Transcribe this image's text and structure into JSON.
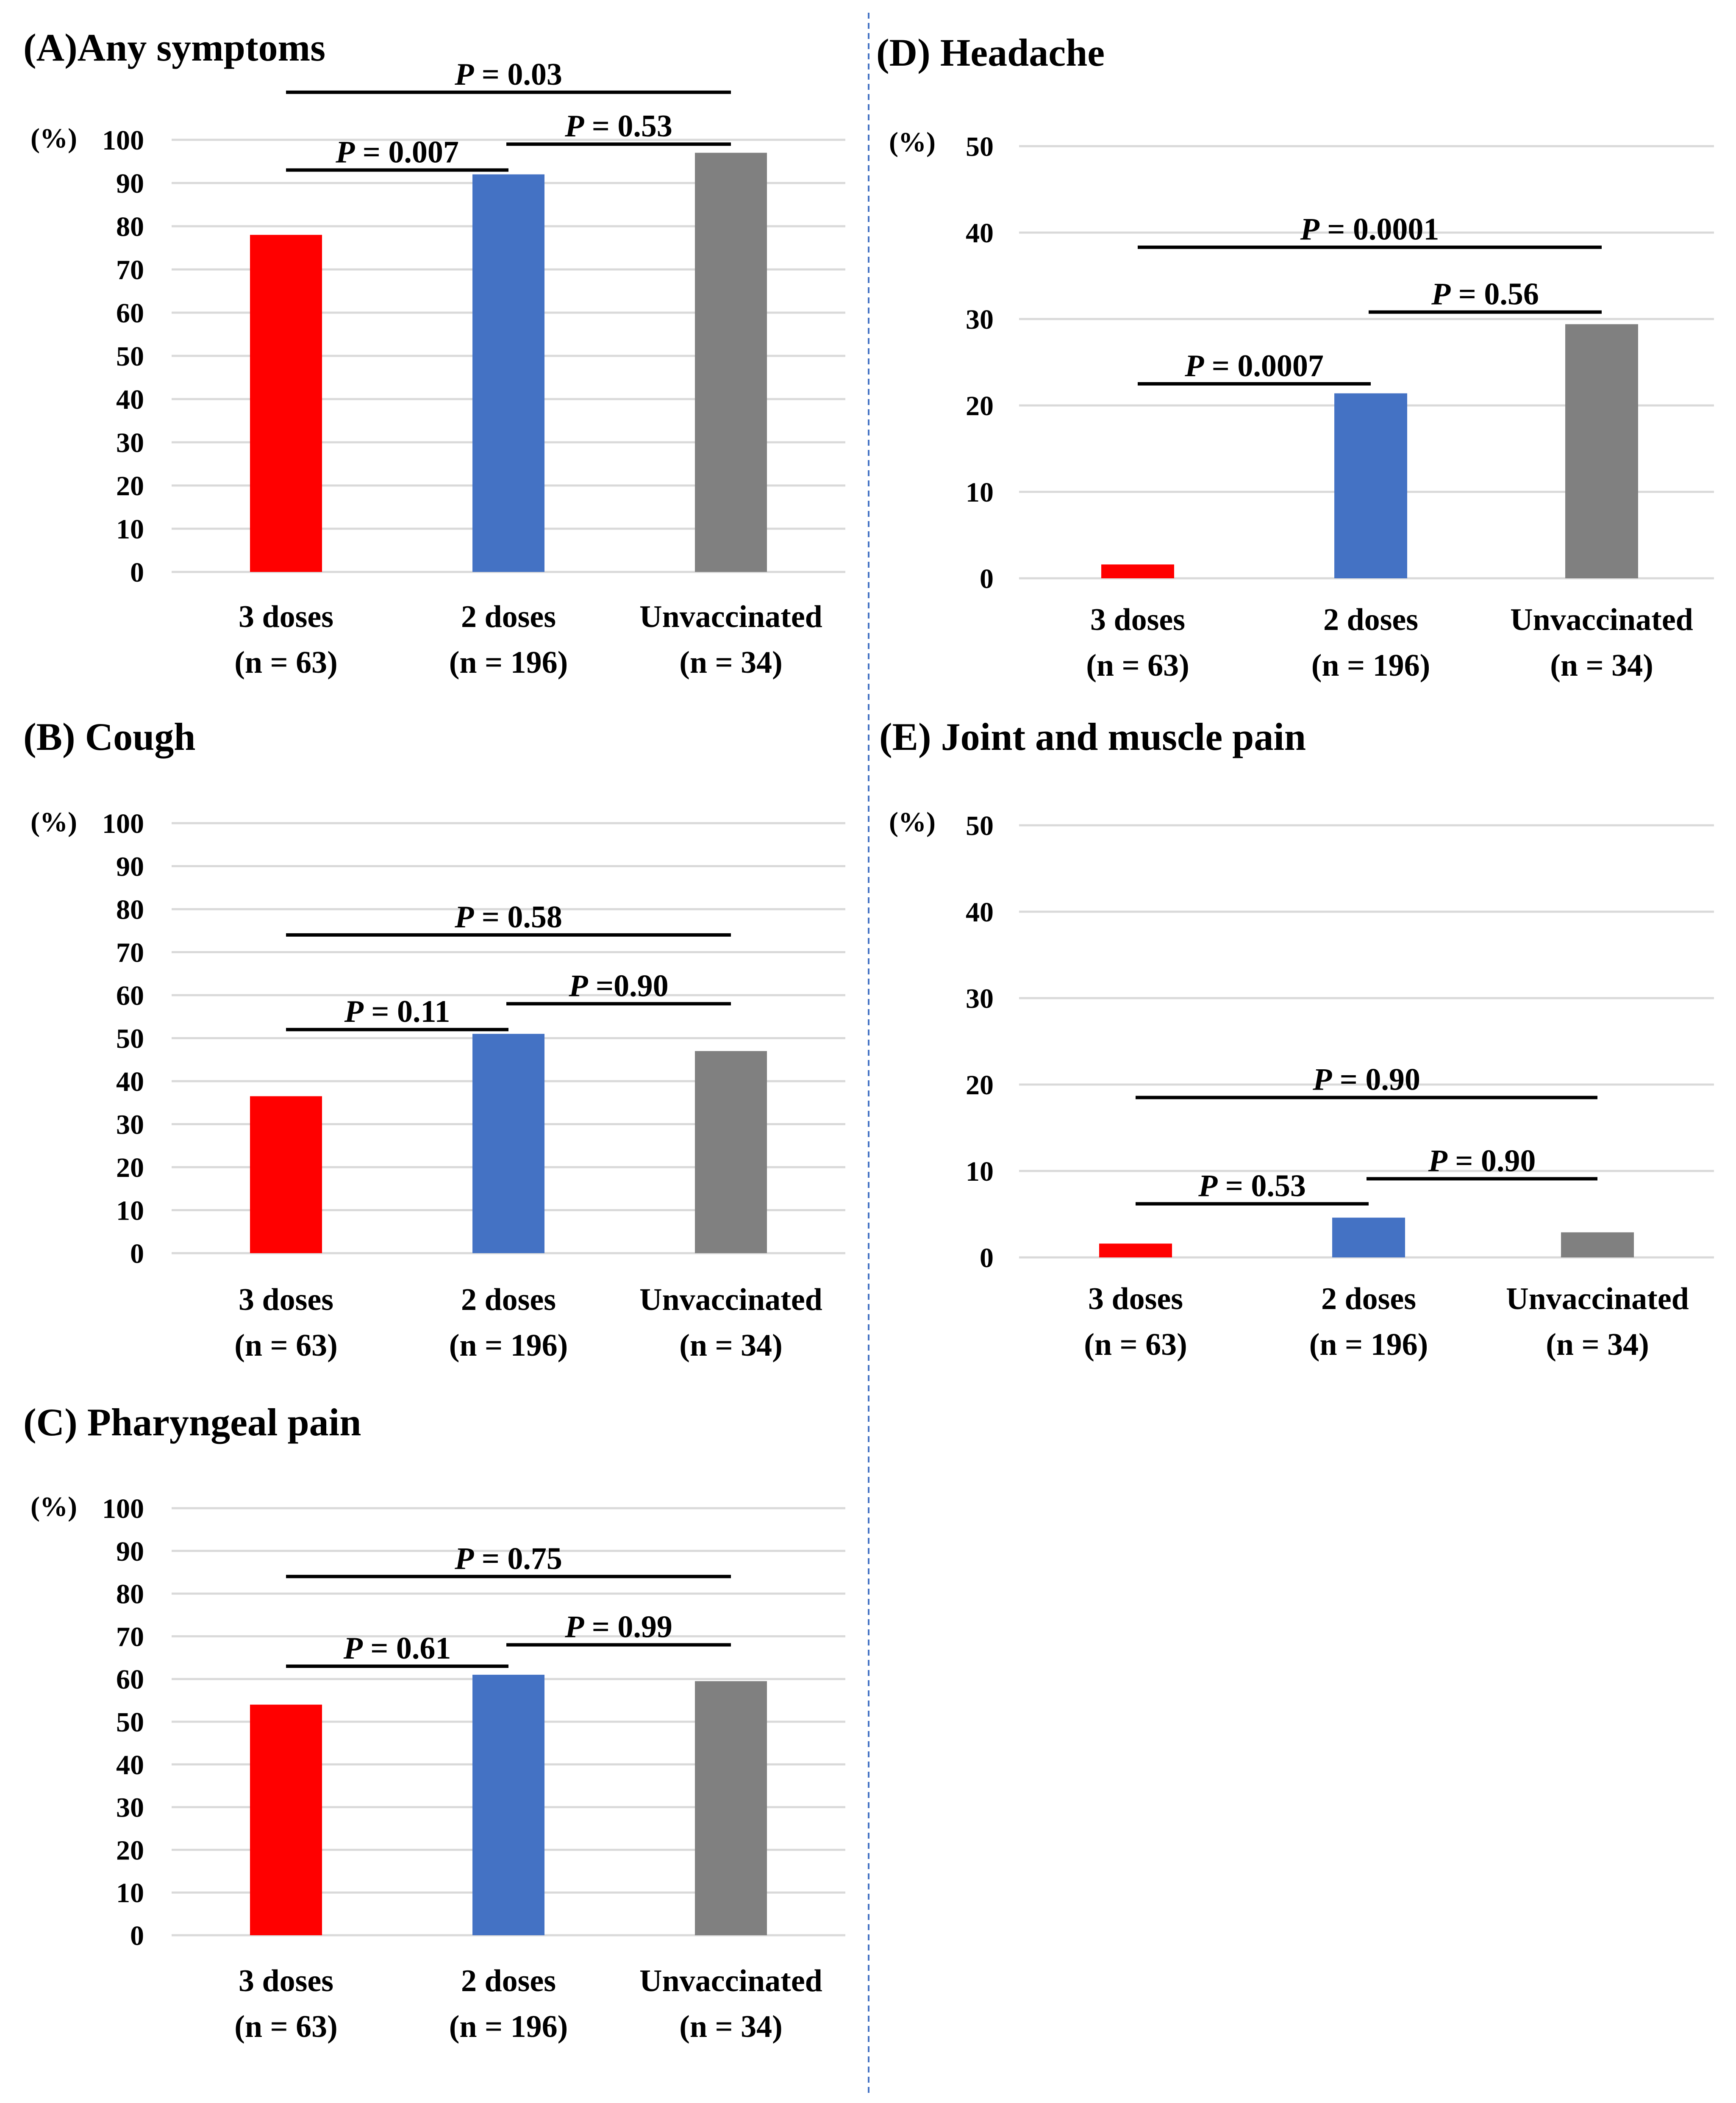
{
  "figure": {
    "categories": [
      {
        "label": "3 doses",
        "n": "(n = 63)"
      },
      {
        "label": "2 doses",
        "n": "(n = 196)"
      },
      {
        "label": "Unvaccinated",
        "n": "(n = 34)"
      }
    ],
    "bar_colors": [
      "#ff0000",
      "#4472c4",
      "#808080"
    ],
    "unit_label": "(%)"
  },
  "chart_data": [
    {
      "id": "A",
      "type": "bar",
      "title": "(A)Any symptoms",
      "categories": [
        "3 doses",
        "2 doses",
        "Unvaccinated"
      ],
      "values": [
        78,
        92,
        97
      ],
      "ylim": [
        0,
        100
      ],
      "yticks": [
        0,
        10,
        20,
        30,
        40,
        50,
        60,
        70,
        80,
        90,
        100
      ],
      "ylabel": "(%)",
      "comparisons": [
        {
          "from": 0,
          "to": 2,
          "level": 111,
          "label": "P = 0.03"
        },
        {
          "from": 0,
          "to": 1,
          "level": 93,
          "label": "P = 0.007"
        },
        {
          "from": 1,
          "to": 2,
          "level": 99,
          "label": "P = 0.53"
        }
      ]
    },
    {
      "id": "B",
      "type": "bar",
      "title": "(B) Cough",
      "categories": [
        "3 doses",
        "2 doses",
        "Unvaccinated"
      ],
      "values": [
        36.5,
        51,
        47
      ],
      "ylim": [
        0,
        100
      ],
      "yticks": [
        0,
        10,
        20,
        30,
        40,
        50,
        60,
        70,
        80,
        90,
        100
      ],
      "ylabel": "(%)",
      "comparisons": [
        {
          "from": 0,
          "to": 2,
          "level": 74,
          "label": "P = 0.58"
        },
        {
          "from": 0,
          "to": 1,
          "level": 52,
          "label": "P = 0.11"
        },
        {
          "from": 1,
          "to": 2,
          "level": 58,
          "label": "P =0.90"
        }
      ]
    },
    {
      "id": "C",
      "type": "bar",
      "title": "(C) Pharyngeal pain",
      "categories": [
        "3 doses",
        "2 doses",
        "Unvaccinated"
      ],
      "values": [
        54,
        61,
        59.5
      ],
      "ylim": [
        0,
        100
      ],
      "yticks": [
        0,
        10,
        20,
        30,
        40,
        50,
        60,
        70,
        80,
        90,
        100
      ],
      "ylabel": "(%)",
      "comparisons": [
        {
          "from": 0,
          "to": 2,
          "level": 84,
          "label": "P = 0.75"
        },
        {
          "from": 0,
          "to": 1,
          "level": 63,
          "label": "P = 0.61"
        },
        {
          "from": 1,
          "to": 2,
          "level": 68,
          "label": "P = 0.99"
        }
      ]
    },
    {
      "id": "D",
      "type": "bar",
      "title": "(D) Headache",
      "categories": [
        "3 doses",
        "2 doses",
        "Unvaccinated"
      ],
      "values": [
        1.6,
        21.4,
        29.4
      ],
      "ylim": [
        0,
        50
      ],
      "yticks": [
        0,
        10,
        20,
        30,
        40,
        50
      ],
      "ylabel": "(%)",
      "comparisons": [
        {
          "from": 0,
          "to": 2,
          "level": 38.3,
          "label": "P = 0.0001"
        },
        {
          "from": 0,
          "to": 1,
          "level": 22.5,
          "label": "P = 0.0007"
        },
        {
          "from": 1,
          "to": 2,
          "level": 30.8,
          "label": "P = 0.56"
        }
      ]
    },
    {
      "id": "E",
      "type": "bar",
      "title": "(E) Joint and muscle pain",
      "categories": [
        "3 doses",
        "2 doses",
        "Unvaccinated"
      ],
      "values": [
        1.6,
        4.6,
        2.9
      ],
      "ylim": [
        0,
        50
      ],
      "yticks": [
        0,
        10,
        20,
        30,
        40,
        50
      ],
      "ylabel": "(%)",
      "comparisons": [
        {
          "from": 0,
          "to": 2,
          "level": 18.5,
          "label": "P = 0.90"
        },
        {
          "from": 0,
          "to": 1,
          "level": 6.2,
          "label": "P = 0.53"
        },
        {
          "from": 1,
          "to": 2,
          "level": 9.1,
          "label": "P = 0.90"
        }
      ]
    }
  ]
}
